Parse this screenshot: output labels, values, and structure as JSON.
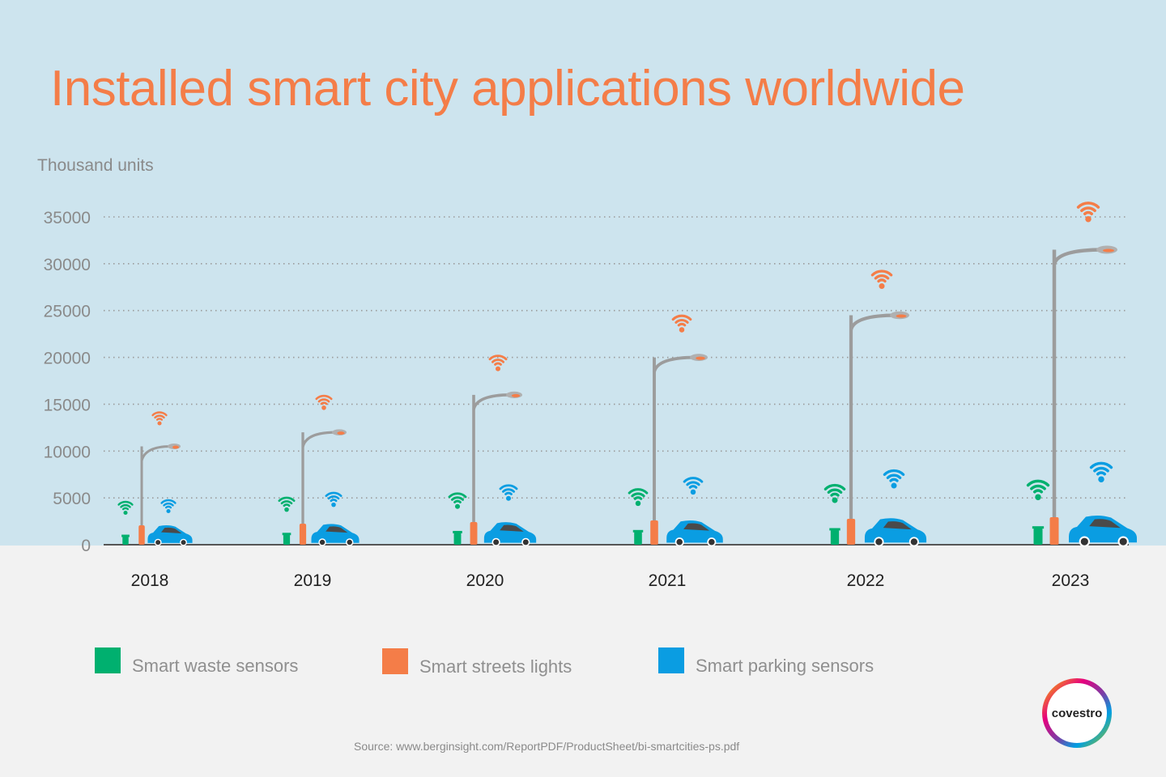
{
  "title": "Installed smart city applications worldwide",
  "unit_label": "Thousand units",
  "chart_data": {
    "type": "bar",
    "categories": [
      "2018",
      "2019",
      "2020",
      "2021",
      "2022",
      "2023"
    ],
    "series": [
      {
        "name": "Smart waste sensors",
        "color": "#00b06f",
        "values": [
          900,
          1100,
          1300,
          1400,
          1600,
          1800
        ]
      },
      {
        "name": "Smart streets lights",
        "color": "#f47d48",
        "values": [
          10500,
          12000,
          16000,
          20000,
          24500,
          31500
        ]
      },
      {
        "name": "Smart parking sensors",
        "color": "#0a9de2",
        "values": [
          1000,
          1300,
          1700,
          2100,
          2600,
          3200
        ]
      }
    ],
    "ylim": [
      0,
      35000
    ],
    "y_ticks": [
      "0",
      "5000",
      "10000",
      "15000",
      "20000",
      "25000",
      "30000",
      "35000"
    ],
    "grid": true,
    "legend_position": "bottom"
  },
  "source": "Source: www.berginsight.com/ReportPDF/ProductSheet/bi-smartcities-ps.pdf",
  "logo_text": "covestro"
}
